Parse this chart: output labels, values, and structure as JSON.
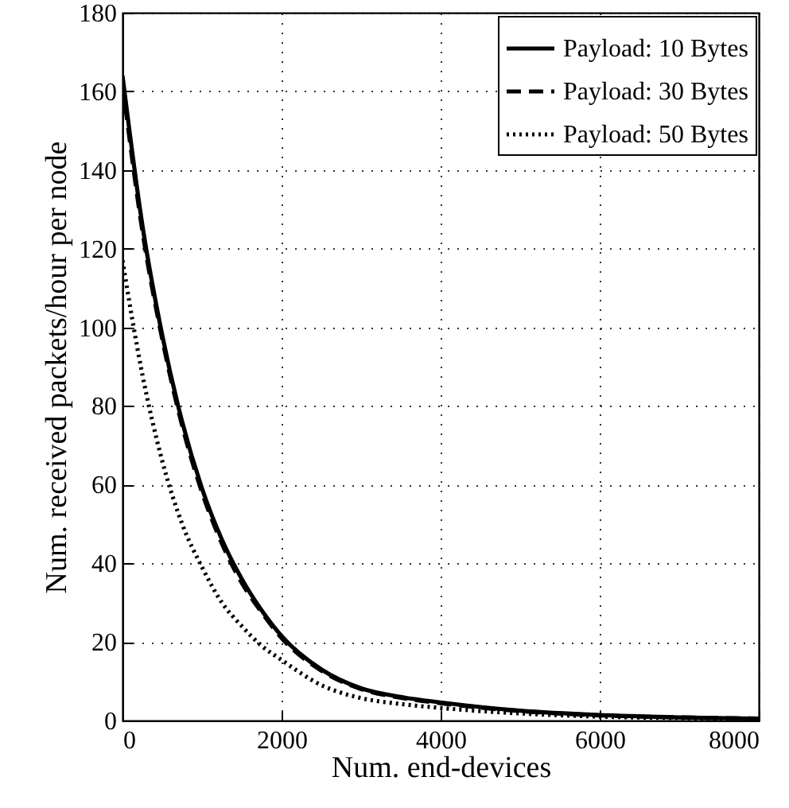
{
  "chart_data": {
    "type": "line",
    "xlabel": "Num. end-devices",
    "ylabel": "Num. received packets/hour per node",
    "x": [
      0,
      250,
      500,
      750,
      1000,
      1250,
      1500,
      1750,
      2000,
      2500,
      3000,
      3500,
      4000,
      5000,
      6000,
      7000,
      8000
    ],
    "series": [
      {
        "name": "Payload: 10 Bytes",
        "color": "#000000",
        "line_style": "solid",
        "values": [
          164,
          126,
          98,
          76,
          59,
          46,
          36,
          28,
          21.5,
          13,
          8.2,
          6,
          4.6,
          2.5,
          1.4,
          0.8,
          0.5
        ]
      },
      {
        "name": "Payload: 30 Bytes",
        "color": "#000000",
        "line_style": "dashed",
        "values": [
          162,
          124.5,
          97,
          75,
          58,
          45,
          35,
          27.5,
          21,
          12.7,
          8,
          5.8,
          4.4,
          2.4,
          1.3,
          0.8,
          0.5
        ]
      },
      {
        "name": "Payload: 50 Bytes",
        "color": "#000000",
        "line_style": "dotted",
        "values": [
          117,
          88,
          66,
          50,
          39,
          30,
          24,
          19,
          15.4,
          9,
          5.7,
          4.2,
          3.2,
          1.8,
          1,
          0.6,
          0.4
        ]
      }
    ],
    "xlim": [
      0,
      8000
    ],
    "xticks": [
      0,
      2000,
      4000,
      6000,
      8000
    ],
    "ylim": [
      0,
      180
    ],
    "yticks": [
      0,
      20,
      40,
      60,
      80,
      100,
      120,
      140,
      160,
      180
    ],
    "grid": true,
    "legend": "top right"
  }
}
